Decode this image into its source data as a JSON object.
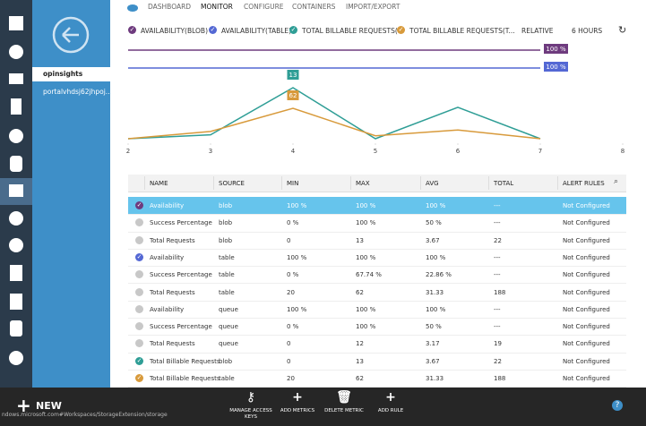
{
  "nav": {
    "items": [
      "opinsights",
      "portalvhdsj62jhpoj..."
    ],
    "selected": 0
  },
  "tabs": {
    "items": [
      "DASHBOARD",
      "MONITOR",
      "CONFIGURE",
      "CONTAINERS",
      "IMPORT/EXPORT"
    ],
    "active": 1
  },
  "controls": {
    "range_mode": "RELATIVE",
    "range": "6 HOURS"
  },
  "chart_data": {
    "type": "line",
    "x": [
      2,
      3,
      4,
      5,
      6,
      7
    ],
    "xlim": [
      2,
      8
    ],
    "xticks": [
      2,
      3,
      4,
      5,
      6,
      7,
      8
    ],
    "series": [
      {
        "name": "AVAILABILITY(BLOB)",
        "color": "#6e3b7e",
        "values": [
          100,
          100,
          100,
          100,
          100,
          100
        ],
        "callout": "100 %"
      },
      {
        "name": "AVAILABILITY(TABLE)",
        "color": "#5468d4",
        "values": [
          100,
          100,
          100,
          100,
          100,
          100
        ],
        "callout": "100 %"
      },
      {
        "name": "TOTAL BILLABLE REQUESTS(...",
        "color": "#2f9e96",
        "values": [
          0,
          1,
          13,
          0,
          8,
          0
        ],
        "callout": "13"
      },
      {
        "name": "TOTAL BILLABLE REQUESTS(T...",
        "color": "#d89a3b",
        "values": [
          20,
          30,
          62,
          24,
          32,
          20
        ],
        "callout": "62"
      }
    ]
  },
  "table": {
    "columns": [
      "NAME",
      "SOURCE",
      "MIN",
      "MAX",
      "AVG",
      "TOTAL",
      "ALERT RULES"
    ],
    "selected_row": 0,
    "rows": [
      {
        "cells": [
          "Availability",
          "blob",
          "100 %",
          "100 %",
          "100 %",
          "---",
          "Not Configured"
        ],
        "check": "#6e3b7e"
      },
      {
        "cells": [
          "Success Percentage",
          "blob",
          "0 %",
          "100 %",
          "50 %",
          "---",
          "Not Configured"
        ]
      },
      {
        "cells": [
          "Total Requests",
          "blob",
          "0",
          "13",
          "3.67",
          "22",
          "Not Configured"
        ]
      },
      {
        "cells": [
          "Availability",
          "table",
          "100 %",
          "100 %",
          "100 %",
          "---",
          "Not Configured"
        ],
        "check": "#5468d4"
      },
      {
        "cells": [
          "Success Percentage",
          "table",
          "0 %",
          "67.74 %",
          "22.86 %",
          "---",
          "Not Configured"
        ]
      },
      {
        "cells": [
          "Total Requests",
          "table",
          "20",
          "62",
          "31.33",
          "188",
          "Not Configured"
        ]
      },
      {
        "cells": [
          "Availability",
          "queue",
          "100 %",
          "100 %",
          "100 %",
          "---",
          "Not Configured"
        ]
      },
      {
        "cells": [
          "Success Percentage",
          "queue",
          "0 %",
          "100 %",
          "50 %",
          "---",
          "Not Configured"
        ]
      },
      {
        "cells": [
          "Total Requests",
          "queue",
          "0",
          "12",
          "3.17",
          "19",
          "Not Configured"
        ]
      },
      {
        "cells": [
          "Total Billable Requests",
          "blob",
          "0",
          "13",
          "3.67",
          "22",
          "Not Configured"
        ],
        "check": "#2f9e96"
      },
      {
        "cells": [
          "Total Billable Requests",
          "table",
          "20",
          "62",
          "31.33",
          "188",
          "Not Configured"
        ],
        "check": "#d89a3b"
      }
    ]
  },
  "bottom_bar": {
    "new": "NEW",
    "url": "ndows.microsoft.com#Workspaces/StorageExtension/storage",
    "actions": [
      "MANAGE ACCESS KEYS",
      "ADD METRICS",
      "DELETE METRIC",
      "ADD RULE"
    ],
    "help": "?"
  }
}
